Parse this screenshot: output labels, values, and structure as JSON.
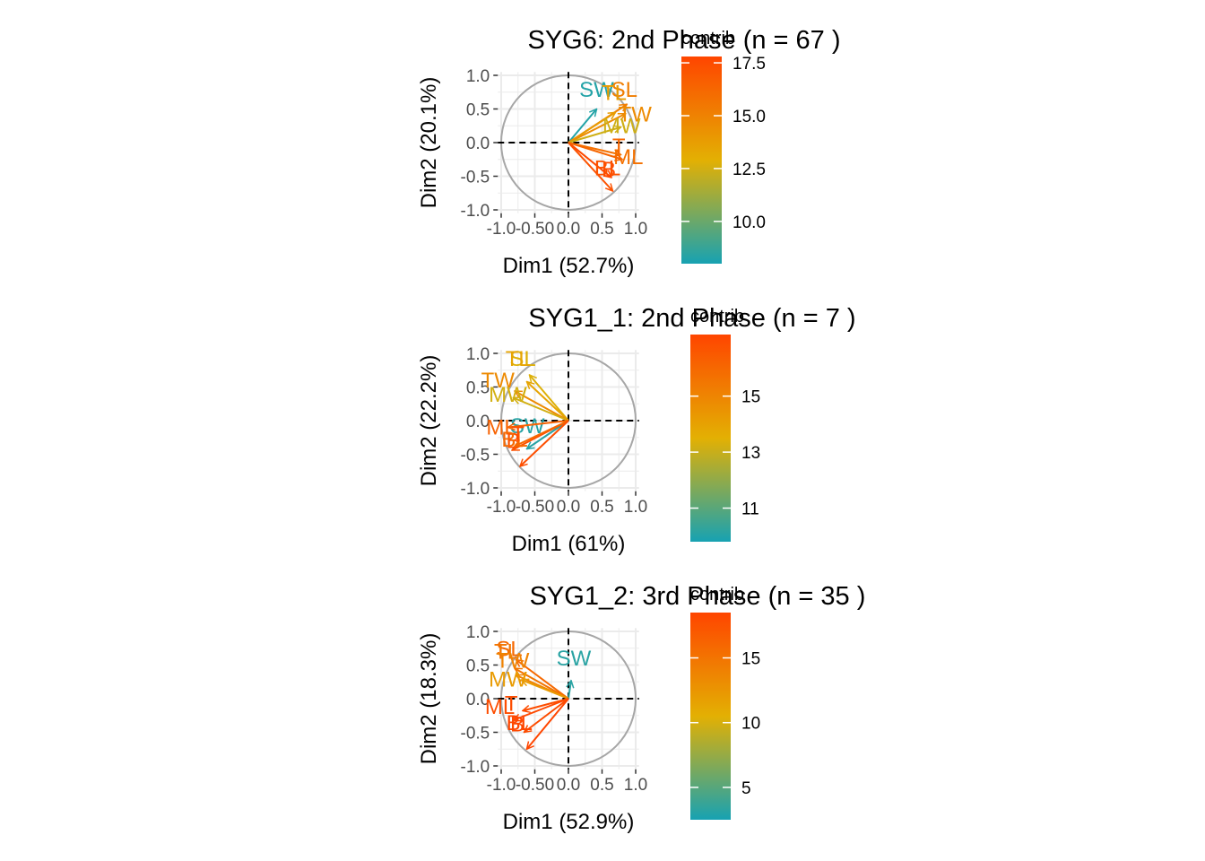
{
  "chart_data": [
    {
      "type": "pca-variable-correlation-circle",
      "title": "SYG6: 2nd Phase (n = 67 )",
      "xlabel": "Dim1 (52.7%)",
      "ylabel": "Dim2 (20.1%)",
      "xlim": [
        -1.05,
        1.05
      ],
      "ylim": [
        -1.05,
        1.05
      ],
      "x_ticks": [
        "-1.0",
        "-0.50",
        "0.0",
        "0.5",
        "1.0"
      ],
      "y_ticks": [
        "1.0",
        "0.5",
        "0.0",
        "-0.5",
        "-1.0"
      ],
      "legend": {
        "title": "contrib",
        "min": 8,
        "max": 17.8,
        "ticks": [
          "17.5",
          "15.0",
          "12.5",
          "10.0"
        ],
        "tick_values": [
          17.5,
          15.0,
          12.5,
          10.0
        ]
      },
      "variables": [
        {
          "label": "SW",
          "x": 0.42,
          "y": 0.5,
          "contrib": 8.3,
          "lx": 0.42,
          "ly": 0.79
        },
        {
          "label": "SL",
          "x": 0.87,
          "y": 0.57,
          "contrib": 15.2,
          "lx": 0.83,
          "ly": 0.79
        },
        {
          "label": "TL",
          "x": 0.7,
          "y": 0.45,
          "contrib": 13.8,
          "lx": 0.68,
          "ly": 0.74
        },
        {
          "label": "TW",
          "x": 0.85,
          "y": 0.43,
          "contrib": 14.6,
          "lx": 0.99,
          "ly": 0.42
        },
        {
          "label": "MW",
          "x": 0.78,
          "y": 0.23,
          "contrib": 12.4,
          "lx": 0.79,
          "ly": 0.25
        },
        {
          "label": "ML",
          "x": 0.78,
          "y": -0.18,
          "contrib": 15.8,
          "lx": 0.89,
          "ly": -0.21
        },
        {
          "label": "B",
          "x": 0.64,
          "y": -0.52,
          "contrib": 17.6,
          "lx": 0.6,
          "ly": -0.4
        },
        {
          "label": "T",
          "x": 0.8,
          "y": -0.25,
          "contrib": 16.3,
          "lx": 0.75,
          "ly": -0.05
        },
        {
          "label": "BL",
          "x": 0.66,
          "y": -0.72,
          "contrib": 17.2,
          "lx": 0.58,
          "ly": -0.38
        }
      ]
    },
    {
      "type": "pca-variable-correlation-circle",
      "title": "SYG1_1: 2nd Phase (n = 7 )",
      "xlabel": "Dim1 (61%)",
      "ylabel": "Dim2 (22.2%)",
      "xlim": [
        -1.05,
        1.05
      ],
      "ylim": [
        -1.05,
        1.05
      ],
      "x_ticks": [
        "-1.0",
        "-0.50",
        "0.0",
        "0.5",
        "1.0"
      ],
      "y_ticks": [
        "1.0",
        "0.5",
        "0.0",
        "-0.5",
        "-1.0"
      ],
      "legend": {
        "title": "contrib",
        "min": 9.8,
        "max": 17.2,
        "ticks": [
          "15",
          "13",
          "11"
        ],
        "tick_values": [
          15,
          13,
          11
        ]
      },
      "variables": [
        {
          "label": "SL",
          "x": -0.58,
          "y": 0.68,
          "contrib": 13.4,
          "lx": -0.68,
          "ly": 0.92
        },
        {
          "label": "TL",
          "x": -0.62,
          "y": 0.58,
          "contrib": 13.9,
          "lx": -0.75,
          "ly": 0.92
        },
        {
          "label": "TW",
          "x": -0.8,
          "y": 0.44,
          "contrib": 14.8,
          "lx": -1.05,
          "ly": 0.6
        },
        {
          "label": "MW",
          "x": -0.82,
          "y": 0.34,
          "contrib": 13.2,
          "lx": -0.9,
          "ly": 0.39
        },
        {
          "label": "SW",
          "x": -0.62,
          "y": -0.42,
          "contrib": 10.1,
          "lx": -0.61,
          "ly": -0.08
        },
        {
          "label": "ML",
          "x": -0.9,
          "y": -0.1,
          "contrib": 16.2,
          "lx": -1.0,
          "ly": -0.1
        },
        {
          "label": "B",
          "x": -0.84,
          "y": -0.44,
          "contrib": 16.8,
          "lx": -0.82,
          "ly": -0.3
        },
        {
          "label": "BL",
          "x": -0.8,
          "y": -0.38,
          "contrib": 16.0,
          "lx": -0.8,
          "ly": -0.28
        },
        {
          "label": "T",
          "x": -0.72,
          "y": -0.68,
          "contrib": 16.9,
          "lx": -0.75,
          "ly": -0.2
        }
      ]
    },
    {
      "type": "pca-variable-correlation-circle",
      "title": "SYG1_2: 3rd Phase (n = 35 )",
      "xlabel": "Dim1 (52.9%)",
      "ylabel": "Dim2 (18.3%)",
      "xlim": [
        -1.05,
        1.05
      ],
      "ylim": [
        -1.05,
        1.05
      ],
      "x_ticks": [
        "-1.0",
        "-0.50",
        "0.0",
        "0.5",
        "1.0"
      ],
      "y_ticks": [
        "1.0",
        "0.5",
        "0.0",
        "-0.5",
        "-1.0"
      ],
      "legend": {
        "title": "contrib",
        "min": 2.5,
        "max": 18.5,
        "ticks": [
          "15",
          "10",
          "5"
        ],
        "tick_values": [
          15,
          10,
          5
        ]
      },
      "variables": [
        {
          "label": "SW",
          "x": 0.04,
          "y": 0.27,
          "contrib": 3.2,
          "lx": 0.08,
          "ly": 0.6
        },
        {
          "label": "SL",
          "x": -0.78,
          "y": 0.58,
          "contrib": 15.8,
          "lx": -0.88,
          "ly": 0.74
        },
        {
          "label": "TL",
          "x": -0.8,
          "y": 0.45,
          "contrib": 14.9,
          "lx": -0.92,
          "ly": 0.7
        },
        {
          "label": "TW",
          "x": -0.78,
          "y": 0.35,
          "contrib": 13.9,
          "lx": -0.83,
          "ly": 0.57
        },
        {
          "label": "MW",
          "x": -0.7,
          "y": 0.28,
          "contrib": 12.1,
          "lx": -0.9,
          "ly": 0.29
        },
        {
          "label": "ML",
          "x": -0.68,
          "y": -0.18,
          "contrib": 17.9,
          "lx": -1.02,
          "ly": -0.12
        },
        {
          "label": "B",
          "x": -0.82,
          "y": -0.32,
          "contrib": 18.2,
          "lx": -0.76,
          "ly": -0.38
        },
        {
          "label": "T",
          "x": -0.66,
          "y": -0.5,
          "contrib": 18.0,
          "lx": -0.85,
          "ly": -0.07
        },
        {
          "label": "BL",
          "x": -0.62,
          "y": -0.75,
          "contrib": 18.4,
          "lx": -0.73,
          "ly": -0.36
        }
      ]
    }
  ]
}
